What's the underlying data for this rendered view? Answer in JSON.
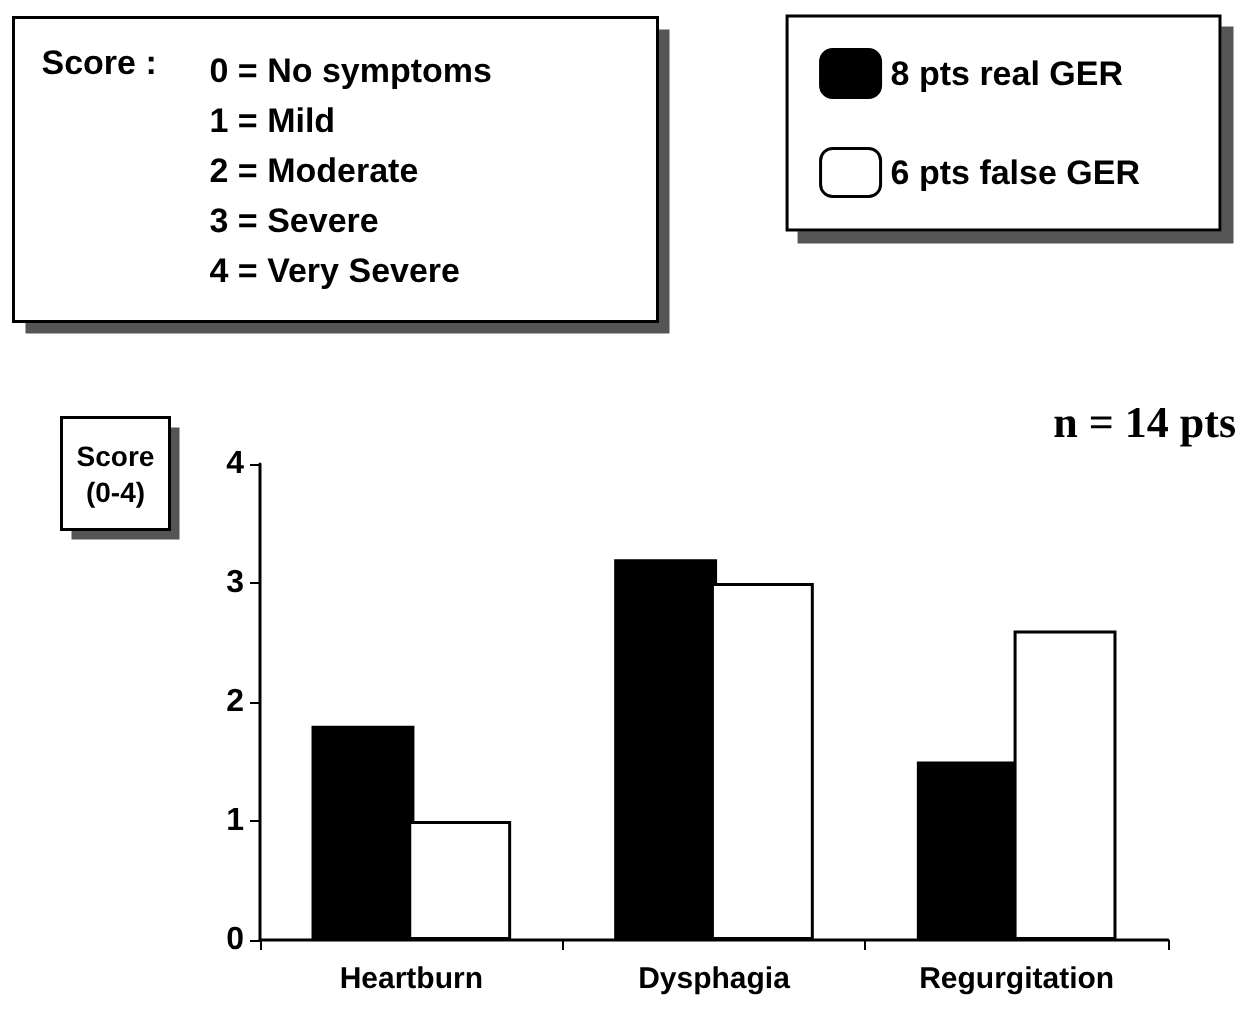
{
  "chart_data": {
    "type": "bar",
    "categories": [
      "Heartburn",
      "Dysphagia",
      "Regurgitation"
    ],
    "series": [
      {
        "name": "8 pts real GER",
        "color": "#000000",
        "values": [
          1.8,
          3.2,
          1.5
        ]
      },
      {
        "name": "6 pts false GER",
        "color": "#ffffff",
        "values": [
          1.0,
          3.0,
          2.6
        ]
      }
    ],
    "ylabel": "Score\n(0-4)",
    "ylim": [
      0,
      4
    ],
    "yticks": [
      0,
      1,
      2,
      3,
      4
    ],
    "grid": false,
    "legend": "top right",
    "annotations": [
      "Score :",
      "0 = No symptoms",
      "1 = Mild",
      "2 = Moderate",
      "3 = Severe",
      "4 = Very Severe",
      "n = 14 pts"
    ]
  }
}
